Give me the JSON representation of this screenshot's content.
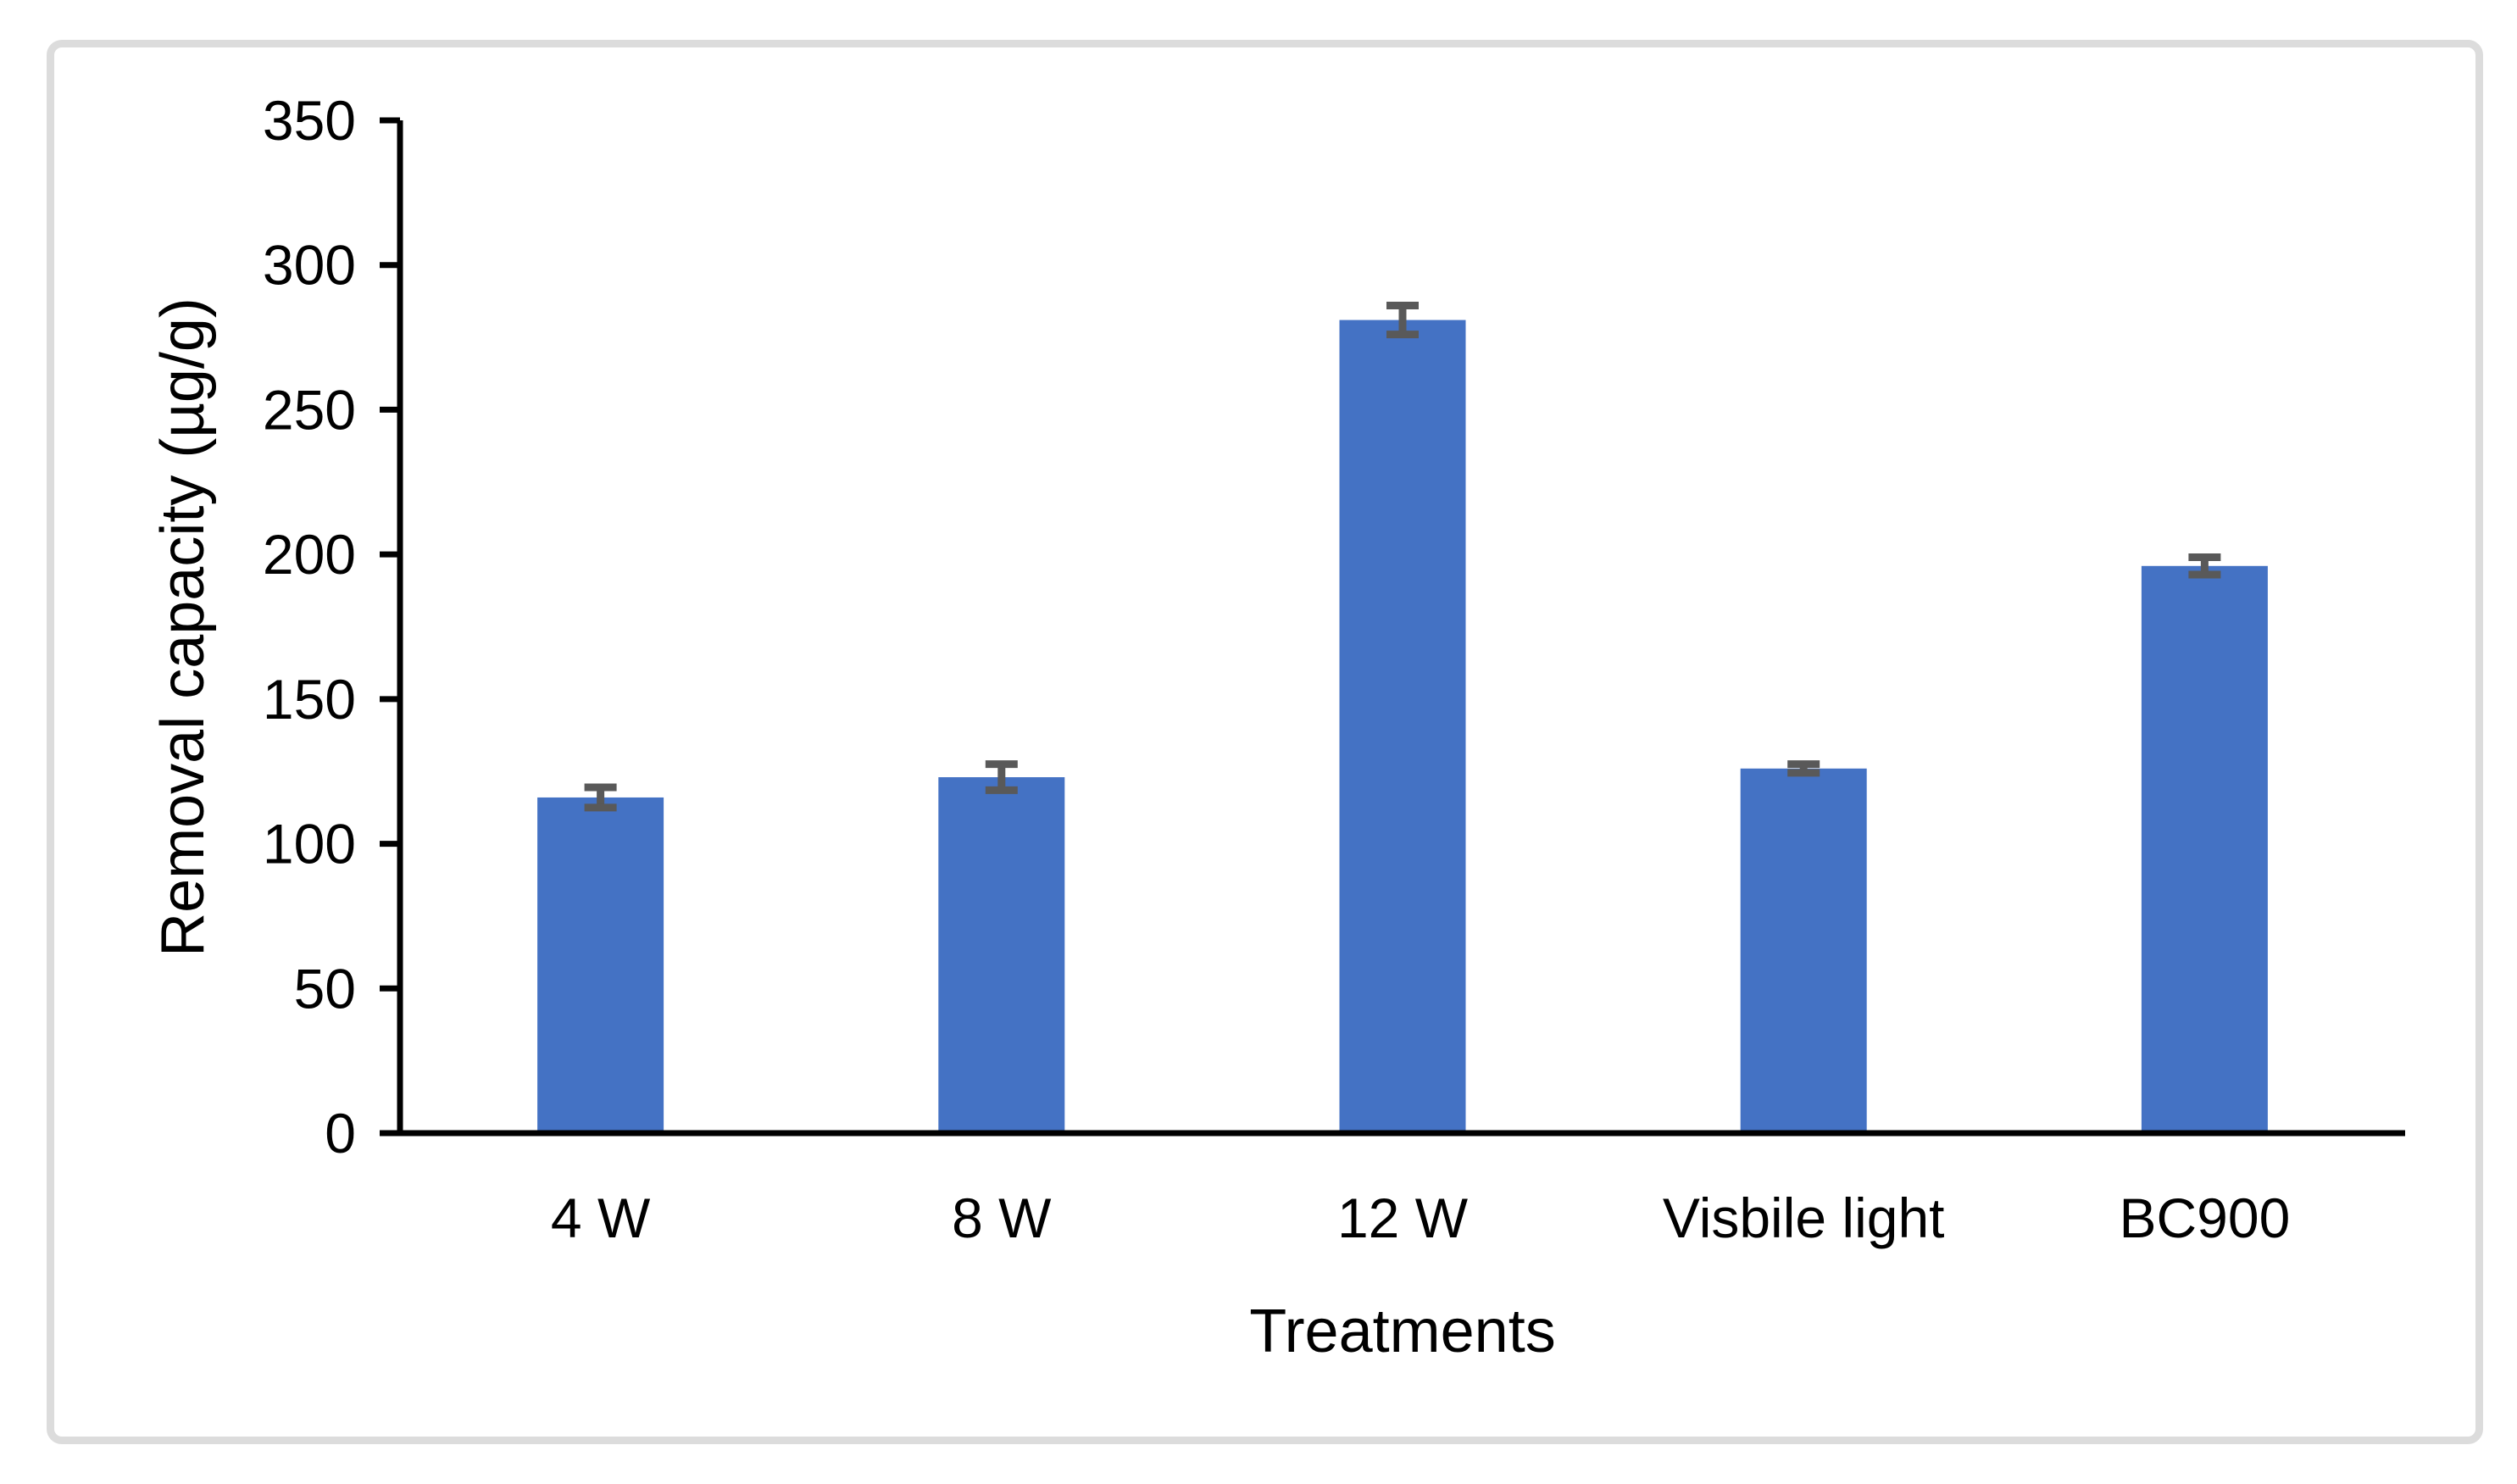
{
  "figure": {
    "background": "#ffffff",
    "frame_border_color": "#dcdcdc"
  },
  "chart_data": {
    "type": "bar",
    "title": "",
    "xlabel": "Treatments",
    "ylabel": "Removal capacity (µg/g)",
    "categories": [
      "4 W",
      "8 W",
      "12 W",
      "Visbile light",
      "BC900"
    ],
    "values": [
      116,
      123,
      281,
      126,
      196
    ],
    "errors": [
      3.5,
      4.5,
      5,
      1.5,
      3
    ],
    "ylim": [
      0,
      350
    ],
    "yticks": [
      0,
      50,
      100,
      150,
      200,
      250,
      300,
      350
    ],
    "grid": false,
    "legend": null,
    "bar_color": "#4472c4",
    "error_bar_color": "#595959",
    "axis_color": "#000000"
  }
}
